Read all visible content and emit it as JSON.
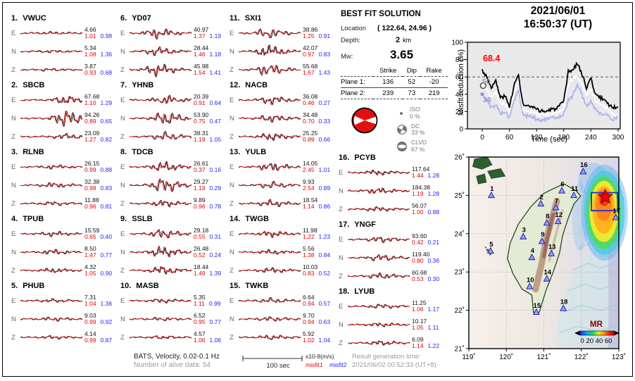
{
  "header": {
    "date": "2021/06/01",
    "time": "16:50:37  (UT)"
  },
  "colors": {
    "misfit1": "#e60000",
    "misfit2": "#2222ff",
    "trace_obs": "#111111",
    "trace_syn": "#d41414",
    "beachball_red": "#e01010",
    "colorbar_label": "#8b0000"
  },
  "stations": [
    {
      "num": "1.",
      "name": "VWUC",
      "pc": 0.45,
      "components": [
        {
          "label": "E",
          "amp": "4.66",
          "m1": "1.01",
          "m2": "0.98",
          "w": 0.1
        },
        {
          "label": "N",
          "amp": "5.34",
          "m1": "1.08",
          "m2": "1.36",
          "w": 0.1
        },
        {
          "label": "Z",
          "amp": "3.87",
          "m1": "0.93",
          "m2": "0.68",
          "w": 0.1
        }
      ]
    },
    {
      "num": "2.",
      "name": "SBCB",
      "pc": 0.7,
      "components": [
        {
          "label": "E",
          "amp": "67.68",
          "m1": "1.10",
          "m2": "1.29",
          "w": 0.45
        },
        {
          "label": "N",
          "amp": "94.26",
          "m1": "0.89",
          "m2": "0.65",
          "w": 0.95
        },
        {
          "label": "Z",
          "amp": "23.09",
          "m1": "1.27",
          "m2": "0.82",
          "w": 0.28
        }
      ]
    },
    {
      "num": "3.",
      "name": "RLNB",
      "pc": 0.5,
      "components": [
        {
          "label": "E",
          "amp": "26.15",
          "m1": "0.99",
          "m2": "0.88",
          "w": 0.18
        },
        {
          "label": "N",
          "amp": "32.38",
          "m1": "0.98",
          "m2": "0.83",
          "w": 0.25
        },
        {
          "label": "Z",
          "amp": "11.88",
          "m1": "0.96",
          "m2": "0.81",
          "w": 0.18
        }
      ]
    },
    {
      "num": "4.",
      "name": "TPUB",
      "pc": 0.5,
      "components": [
        {
          "label": "E",
          "amp": "15.59",
          "m1": "0.65",
          "m2": "0.40",
          "w": 0.22
        },
        {
          "label": "N",
          "amp": "8.50",
          "m1": "1.47",
          "m2": "0.77",
          "w": 0.25
        },
        {
          "label": "Z",
          "amp": "4.32",
          "m1": "1.05",
          "m2": "0.90",
          "w": 0.22
        }
      ]
    },
    {
      "num": "5.",
      "name": "PHUB",
      "pc": 0.5,
      "components": [
        {
          "label": "E",
          "amp": "7.31",
          "m1": "1.04",
          "m2": "1.36",
          "w": 0.15
        },
        {
          "label": "N",
          "amp": "9.03",
          "m1": "0.99",
          "m2": "0.92",
          "w": 0.18
        },
        {
          "label": "Z",
          "amp": "4.14",
          "m1": "0.99",
          "m2": "0.87",
          "w": 0.15
        }
      ]
    },
    {
      "num": "6.",
      "name": "YD07",
      "pc": 0.42,
      "components": [
        {
          "label": "E",
          "amp": "40.97",
          "m1": "1.37",
          "m2": "1.19",
          "w": 0.55
        },
        {
          "label": "N",
          "amp": "28.44",
          "m1": "1.46",
          "m2": "1.18",
          "w": 0.45
        },
        {
          "label": "Z",
          "amp": "45.98",
          "m1": "1.54",
          "m2": "1.41",
          "w": 0.65
        }
      ]
    },
    {
      "num": "7.",
      "name": "YHNB",
      "pc": 0.55,
      "components": [
        {
          "label": "E",
          "amp": "20.39",
          "m1": "0.91",
          "m2": "0.64",
          "w": 0.45
        },
        {
          "label": "N",
          "amp": "53.90",
          "m1": "0.75",
          "m2": "0.47",
          "w": 0.75
        },
        {
          "label": "Z",
          "amp": "38.31",
          "m1": "1.19",
          "m2": "1.05",
          "w": 0.45
        }
      ]
    },
    {
      "num": "8.",
      "name": "TDCB",
      "pc": 0.52,
      "components": [
        {
          "label": "E",
          "amp": "26.61",
          "m1": "0.37",
          "m2": "0.16",
          "w": 0.55
        },
        {
          "label": "N",
          "amp": "29.27",
          "m1": "1.19",
          "m2": "0.29",
          "w": 0.85
        },
        {
          "label": "Z",
          "amp": "9.89",
          "m1": "0.96",
          "m2": "0.78",
          "w": 0.35
        }
      ]
    },
    {
      "num": "9.",
      "name": "SSLB",
      "pc": 0.5,
      "components": [
        {
          "label": "E",
          "amp": "29.18",
          "m1": "0.55",
          "m2": "0.31",
          "w": 0.5
        },
        {
          "label": "N",
          "amp": "26.48",
          "m1": "0.52",
          "m2": "0.24",
          "w": 0.6
        },
        {
          "label": "Z",
          "amp": "18.44",
          "m1": "1.49",
          "m2": "1.39",
          "w": 0.45
        }
      ]
    },
    {
      "num": "10.",
      "name": "MASB",
      "pc": 0.5,
      "components": [
        {
          "label": "E",
          "amp": "5.35",
          "m1": "1.11",
          "m2": "0.99",
          "w": 0.2
        },
        {
          "label": "N",
          "amp": "6.52",
          "m1": "0.95",
          "m2": "0.77",
          "w": 0.15
        },
        {
          "label": "Z",
          "amp": "4.57",
          "m1": "1.06",
          "m2": "1.06",
          "w": 0.15
        }
      ]
    },
    {
      "num": "11.",
      "name": "SXI1",
      "pc": 0.45,
      "components": [
        {
          "label": "E",
          "amp": "38.86",
          "m1": "1.25",
          "m2": "0.91",
          "w": 0.55
        },
        {
          "label": "N",
          "amp": "42.07",
          "m1": "0.97",
          "m2": "0.83",
          "w": 0.65
        },
        {
          "label": "Z",
          "amp": "55.68",
          "m1": "1.67",
          "m2": "1.43",
          "w": 0.65
        }
      ]
    },
    {
      "num": "12.",
      "name": "NACB",
      "pc": 0.5,
      "components": [
        {
          "label": "E",
          "amp": "36.08",
          "m1": "0.46",
          "m2": "0.27",
          "w": 0.45
        },
        {
          "label": "N",
          "amp": "34.48",
          "m1": "0.70",
          "m2": "0.33",
          "w": 0.4
        },
        {
          "label": "Z",
          "amp": "25.25",
          "m1": "0.89",
          "m2": "0.66",
          "w": 0.4
        }
      ]
    },
    {
      "num": "13.",
      "name": "YULB",
      "pc": 0.5,
      "components": [
        {
          "label": "E",
          "amp": "14.05",
          "m1": "2.45",
          "m2": "1.01",
          "w": 0.45
        },
        {
          "label": "N",
          "amp": "9.93",
          "m1": "2.54",
          "m2": "0.89",
          "w": 0.35
        },
        {
          "label": "Z",
          "amp": "18.54",
          "m1": "1.14",
          "m2": "0.86",
          "w": 0.35
        }
      ]
    },
    {
      "num": "14.",
      "name": "TWGB",
      "pc": 0.5,
      "components": [
        {
          "label": "E",
          "amp": "11.98",
          "m1": "1.22",
          "m2": "1.23",
          "w": 0.3
        },
        {
          "label": "N",
          "amp": "5.56",
          "m1": "1.38",
          "m2": "0.84",
          "w": 0.22
        },
        {
          "label": "Z",
          "amp": "10.03",
          "m1": "0.83",
          "m2": "0.52",
          "w": 0.25
        }
      ]
    },
    {
      "num": "15.",
      "name": "TWKB",
      "pc": 0.5,
      "components": [
        {
          "label": "E",
          "amp": "6.64",
          "m1": "0.94",
          "m2": "0.57",
          "w": 0.25
        },
        {
          "label": "N",
          "amp": "9.70",
          "m1": "0.94",
          "m2": "0.63",
          "w": 0.22
        },
        {
          "label": "Z",
          "amp": "5.92",
          "m1": "1.02",
          "m2": "1.04",
          "w": 0.22
        }
      ]
    },
    {
      "num": "16.",
      "name": "PCYB",
      "pc": 0.45,
      "components": [
        {
          "label": "E",
          "amp": "117.64",
          "m1": "1.44",
          "m2": "1.28",
          "w": 0.25
        },
        {
          "label": "N",
          "amp": "184.38",
          "m1": "1.19",
          "m2": "1.28",
          "w": 0.3
        },
        {
          "label": "Z",
          "amp": "56.07",
          "m1": "1.00",
          "m2": "0.88",
          "w": 0.22
        }
      ]
    },
    {
      "num": "17.",
      "name": "YNGF",
      "pc": 0.5,
      "components": [
        {
          "label": "E",
          "amp": "93.60",
          "m1": "0.42",
          "m2": "0.21",
          "w": 0.3
        },
        {
          "label": "N",
          "amp": "119.40",
          "m1": "0.80",
          "m2": "0.36",
          "w": 0.35
        },
        {
          "label": "Z",
          "amp": "60.68",
          "m1": "0.53",
          "m2": "0.30",
          "w": 0.3
        }
      ]
    },
    {
      "num": "18.",
      "name": "LYUB",
      "pc": 0.5,
      "components": [
        {
          "label": "E",
          "amp": "11.25",
          "m1": "1.06",
          "m2": "1.17",
          "w": 0.22
        },
        {
          "label": "N",
          "amp": "10.17",
          "m1": "1.05",
          "m2": "1.11",
          "w": 0.18
        },
        {
          "label": "Z",
          "amp": "6.09",
          "m1": "1.14",
          "m2": "1.22",
          "w": 0.22
        }
      ]
    }
  ],
  "solution": {
    "title": "BEST FIT SOLUTION",
    "location_label": "Location",
    "location_value": "( 122.64,  24.96 )",
    "depth_label": "Depth:",
    "depth_value": "2",
    "depth_unit": "km",
    "mw_label": "Mw:",
    "mw_value": "3.65",
    "table": {
      "headers": [
        "Strike",
        "Dip",
        "Rake"
      ],
      "rows": [
        {
          "label": "Plane 1:",
          "strike": "136",
          "dip": "52",
          "rake": "-20"
        },
        {
          "label": "Plane 2:",
          "strike": "239",
          "dip": "73",
          "rake": "219"
        }
      ]
    },
    "decomposition": [
      {
        "name": "ISO",
        "pct": "0 %"
      },
      {
        "name": "DC",
        "pct": "33 %"
      },
      {
        "name": "CLVD",
        "pct": "67 %"
      }
    ]
  },
  "chart_data": {
    "type": "line",
    "title": "2021/06/01 16:50:37 (UT)",
    "xlabel": "Time (sec)",
    "ylabel": "Misfit reduction (%)",
    "xlim": [
      0,
      300
    ],
    "ylim": [
      0,
      100
    ],
    "xticks": [
      0,
      60,
      120,
      180,
      240,
      300
    ],
    "yticks": [
      0,
      20,
      40,
      60,
      80,
      100
    ],
    "dashed_line_y": 60,
    "x_step": 10,
    "series": [
      {
        "name": "best",
        "color": "#000000",
        "values": [
          68,
          60,
          48,
          55,
          36,
          38,
          26,
          50,
          62,
          28,
          26,
          25,
          22,
          21,
          20,
          22,
          23,
          26,
          31,
          66,
          68,
          76,
          64,
          48,
          58,
          40,
          36,
          34,
          28,
          24,
          27
        ]
      },
      {
        "name": "second",
        "color": "#ffffff",
        "values": [
          50,
          46,
          36,
          42,
          28,
          30,
          20,
          42,
          55,
          22,
          20,
          19,
          17,
          16,
          15,
          17,
          18,
          20,
          24,
          52,
          58,
          62,
          52,
          38,
          45,
          32,
          28,
          26,
          20,
          16,
          16
        ]
      },
      {
        "name": "third",
        "color": "#aab4f0",
        "values": [
          40,
          33,
          24,
          28,
          18,
          20,
          13,
          32,
          44,
          16,
          15,
          14,
          11,
          10,
          11,
          12,
          13,
          14,
          17,
          33,
          38,
          52,
          40,
          26,
          32,
          22,
          18,
          17,
          14,
          11,
          15
        ]
      }
    ],
    "annotations": [
      {
        "text": "68.4",
        "color": "#ff0000"
      },
      {
        "text": "50",
        "color": "#999999"
      },
      {
        "text": "36",
        "color": "#8890e8"
      }
    ]
  },
  "map": {
    "lon_range": [
      119,
      123
    ],
    "lat_range": [
      21,
      26
    ],
    "xticks": [
      "119˚",
      "120˚",
      "121˚",
      "122˚",
      "123˚"
    ],
    "yticks": [
      "21˚",
      "22˚",
      "23˚",
      "24˚",
      "25˚",
      "26˚"
    ],
    "epicenter": {
      "lon": 122.64,
      "lat": 24.96
    },
    "search_box": {
      "lon_min": 122.27,
      "lon_max": 122.97,
      "lat_min": 24.6,
      "lat_max": 25.07
    },
    "colorbar": {
      "label": "MR",
      "ticks": "0 20 40 60"
    },
    "stations": [
      {
        "id": "1",
        "lon": 119.6,
        "lat": 25.0
      },
      {
        "id": "2",
        "lon": 120.92,
        "lat": 24.78
      },
      {
        "id": "3",
        "lon": 120.45,
        "lat": 23.92
      },
      {
        "id": "4",
        "lon": 120.68,
        "lat": 23.38
      },
      {
        "id": "5",
        "lon": 119.58,
        "lat": 23.55
      },
      {
        "id": "6",
        "lon": 121.48,
        "lat": 25.12
      },
      {
        "id": "7",
        "lon": 121.32,
        "lat": 24.68
      },
      {
        "id": "8",
        "lon": 121.08,
        "lat": 24.28
      },
      {
        "id": "9",
        "lon": 120.95,
        "lat": 23.8
      },
      {
        "id": "10",
        "lon": 120.62,
        "lat": 22.62
      },
      {
        "id": "11",
        "lon": 121.8,
        "lat": 25.0
      },
      {
        "id": "12",
        "lon": 121.38,
        "lat": 24.32
      },
      {
        "id": "13",
        "lon": 121.2,
        "lat": 23.48
      },
      {
        "id": "14",
        "lon": 121.08,
        "lat": 22.82
      },
      {
        "id": "15",
        "lon": 120.8,
        "lat": 21.95
      },
      {
        "id": "16",
        "lon": 122.05,
        "lat": 25.62
      },
      {
        "id": "17",
        "lon": 122.92,
        "lat": 24.42
      },
      {
        "id": "18",
        "lon": 121.52,
        "lat": 22.05
      }
    ]
  },
  "footer": {
    "line1": "BATS, Velocity, 0.02-0.1 Hz",
    "line2": "Number of alive data: 54",
    "scalebar_label": "100 sec",
    "units": "x10-8(m/s)",
    "misfit1_label": "misfit1",
    "misfit2_label": "misfit2",
    "result_label": "Result generation time:",
    "result_value": "2021/06/02 00:52:33 (UT+8)"
  }
}
